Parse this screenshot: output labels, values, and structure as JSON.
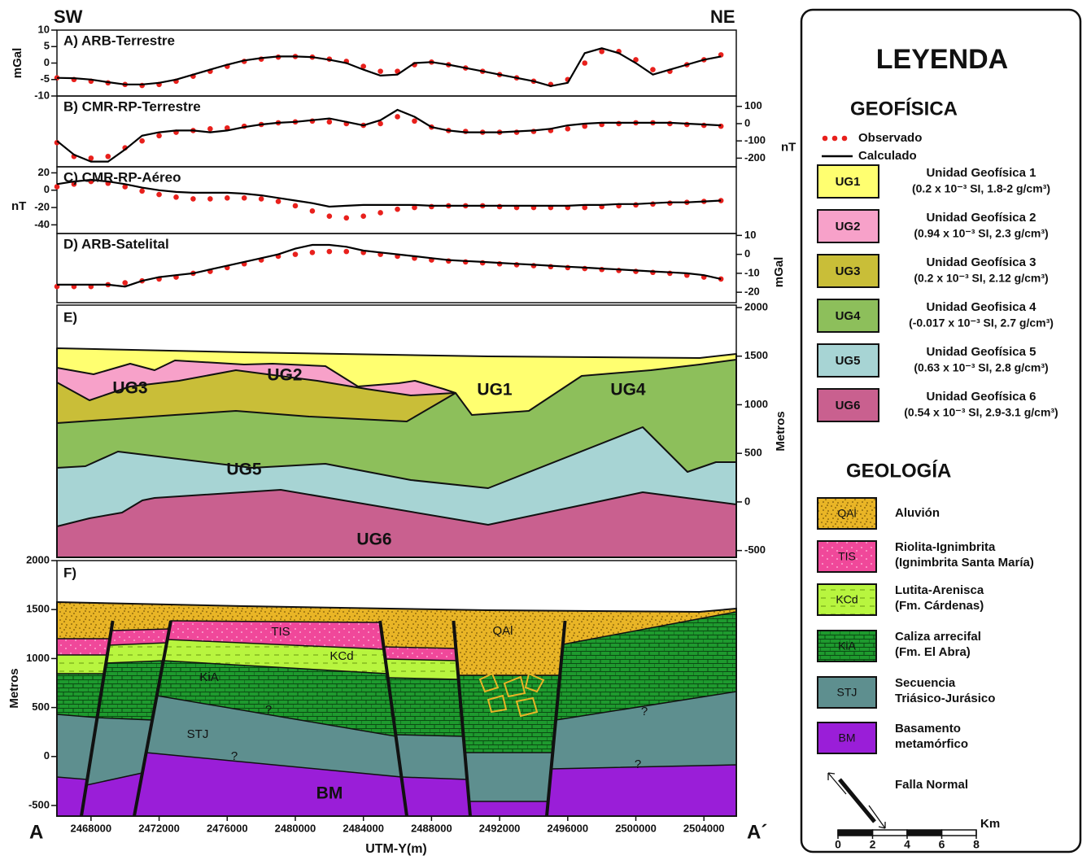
{
  "header": {
    "left": "SW",
    "right": "NE"
  },
  "chart_data": [
    {
      "type": "line",
      "title": "A) ARB-Terrestre",
      "ylabel": "mGal",
      "yaxis_side": "left",
      "xlim": [
        2466000,
        2505900
      ],
      "ylim": [
        -10,
        10
      ],
      "yticks": [
        -10,
        -5,
        0,
        5,
        10
      ],
      "x": [
        2466000,
        2467000,
        2468000,
        2469000,
        2470000,
        2471000,
        2472000,
        2473000,
        2474000,
        2475000,
        2476000,
        2477000,
        2478000,
        2479000,
        2480000,
        2481000,
        2482000,
        2483000,
        2484000,
        2485000,
        2486000,
        2487000,
        2488000,
        2489000,
        2490000,
        2491000,
        2492000,
        2493000,
        2494000,
        2495000,
        2496000,
        2497000,
        2498000,
        2499000,
        2500000,
        2501000,
        2502000,
        2503000,
        2504000,
        2505000
      ],
      "series": [
        {
          "name": "Observado",
          "marker": "dots",
          "color": "#e8201c",
          "values": [
            -4.5,
            -5,
            -5.5,
            -6,
            -6.5,
            -6.8,
            -6.5,
            -5.5,
            -4,
            -2.5,
            -1,
            0.5,
            1.2,
            1.8,
            2,
            1.8,
            1.2,
            0.5,
            -1,
            -2.5,
            -2.5,
            -0.5,
            0.3,
            -0.5,
            -1.5,
            -2.5,
            -3.5,
            -4.5,
            -5.5,
            -6.5,
            -5,
            0,
            3.5,
            3.5,
            1,
            -2,
            -2.5,
            -0.5,
            1,
            2.5
          ]
        },
        {
          "name": "Calculado",
          "marker": "line",
          "color": "#000000",
          "values": [
            -4.5,
            -4.6,
            -5,
            -5.8,
            -6.5,
            -6.5,
            -6,
            -5,
            -3.5,
            -2,
            -0.5,
            0.8,
            1.5,
            2,
            2,
            1.8,
            1,
            0,
            -2,
            -3.8,
            -3.5,
            0,
            0.3,
            -0.5,
            -1.5,
            -2.5,
            -3.5,
            -4.5,
            -5.5,
            -7,
            -6,
            3,
            4.5,
            3,
            0,
            -3.5,
            -2,
            -0.5,
            1,
            2
          ]
        }
      ]
    },
    {
      "type": "line",
      "title": "B) CMR-RP-Terrestre",
      "ylabel": "nT",
      "yaxis_side": "right",
      "xlim": [
        2466000,
        2505900
      ],
      "ylim": [
        -250,
        160
      ],
      "yticks": [
        -200,
        -100,
        0,
        100
      ],
      "x": [
        2466000,
        2467000,
        2468000,
        2469000,
        2470000,
        2471000,
        2472000,
        2473000,
        2474000,
        2475000,
        2476000,
        2477000,
        2478000,
        2479000,
        2480000,
        2481000,
        2482000,
        2483000,
        2484000,
        2485000,
        2486000,
        2487000,
        2488000,
        2489000,
        2490000,
        2491000,
        2492000,
        2493000,
        2494000,
        2495000,
        2496000,
        2497000,
        2498000,
        2499000,
        2500000,
        2501000,
        2502000,
        2503000,
        2504000,
        2505000
      ],
      "series": [
        {
          "marker": "dots",
          "color": "#e8201c",
          "values": [
            -110,
            -190,
            -200,
            -190,
            -140,
            -100,
            -70,
            -50,
            -40,
            -30,
            -25,
            -15,
            -5,
            5,
            10,
            15,
            10,
            0,
            -10,
            0,
            40,
            15,
            -20,
            -40,
            -45,
            -50,
            -50,
            -50,
            -45,
            -40,
            -30,
            -15,
            -5,
            0,
            5,
            5,
            0,
            -5,
            -10,
            -15
          ]
        },
        {
          "marker": "line",
          "color": "#000000",
          "values": [
            -100,
            -180,
            -220,
            -220,
            -150,
            -70,
            -50,
            -40,
            -40,
            -50,
            -40,
            -20,
            -5,
            5,
            10,
            20,
            30,
            10,
            -10,
            20,
            80,
            40,
            -20,
            -40,
            -50,
            -50,
            -50,
            -45,
            -40,
            -30,
            -10,
            0,
            5,
            5,
            5,
            5,
            5,
            0,
            -5,
            -10
          ]
        }
      ]
    },
    {
      "type": "line",
      "title": "C) CMR-RP-Aéreo",
      "ylabel": "nT",
      "yaxis_side": "left",
      "xlim": [
        2466000,
        2505900
      ],
      "ylim": [
        -50,
        27
      ],
      "yticks": [
        -40,
        -20,
        0,
        20
      ],
      "x": [
        2466000,
        2467000,
        2468000,
        2469000,
        2470000,
        2471000,
        2472000,
        2473000,
        2474000,
        2475000,
        2476000,
        2477000,
        2478000,
        2479000,
        2480000,
        2481000,
        2482000,
        2483000,
        2484000,
        2485000,
        2486000,
        2487000,
        2488000,
        2489000,
        2490000,
        2491000,
        2492000,
        2493000,
        2494000,
        2495000,
        2496000,
        2497000,
        2498000,
        2499000,
        2500000,
        2501000,
        2502000,
        2503000,
        2504000,
        2505000
      ],
      "series": [
        {
          "marker": "dots",
          "color": "#e8201c",
          "values": [
            4,
            7,
            10,
            8,
            4,
            -1,
            -5,
            -8,
            -10,
            -10,
            -9,
            -9,
            -10,
            -13,
            -18,
            -24,
            -30,
            -32,
            -30,
            -26,
            -22,
            -20,
            -19,
            -18,
            -18,
            -18,
            -19,
            -20,
            -20,
            -20,
            -20,
            -20,
            -19,
            -18,
            -17,
            -16,
            -15,
            -14,
            -13,
            -12
          ]
        },
        {
          "marker": "line",
          "color": "#000000",
          "values": [
            7,
            10,
            12,
            10,
            7,
            3,
            0,
            -2,
            -3,
            -3,
            -3,
            -4,
            -6,
            -9,
            -12,
            -15,
            -19,
            -18,
            -17,
            -17,
            -17,
            -17,
            -18,
            -18,
            -18,
            -18,
            -18,
            -18,
            -18,
            -18,
            -18,
            -17,
            -17,
            -16,
            -16,
            -15,
            -14,
            -14,
            -13,
            -12
          ]
        }
      ]
    },
    {
      "type": "line",
      "title": "D) ARB-Satelital",
      "ylabel": "mGal",
      "yaxis_side": "right",
      "xlim": [
        2466000,
        2505900
      ],
      "ylim": [
        -25.5,
        11
      ],
      "yticks": [
        -20,
        -10,
        0,
        10
      ],
      "x": [
        2466000,
        2467000,
        2468000,
        2469000,
        2470000,
        2471000,
        2472000,
        2473000,
        2474000,
        2475000,
        2476000,
        2477000,
        2478000,
        2479000,
        2480000,
        2481000,
        2482000,
        2483000,
        2484000,
        2485000,
        2486000,
        2487000,
        2488000,
        2489000,
        2490000,
        2491000,
        2492000,
        2493000,
        2494000,
        2495000,
        2496000,
        2497000,
        2498000,
        2499000,
        2500000,
        2501000,
        2502000,
        2503000,
        2504000,
        2505000
      ],
      "series": [
        {
          "marker": "dots",
          "color": "#e8201c",
          "values": [
            -17,
            -17,
            -17,
            -16,
            -15,
            -14,
            -13,
            -12,
            -10,
            -9,
            -7,
            -5,
            -3,
            -1,
            0,
            1,
            1.5,
            1.5,
            1,
            0,
            -1,
            -2,
            -3,
            -3.5,
            -4,
            -4.5,
            -5,
            -5.5,
            -6,
            -6.5,
            -7,
            -7.5,
            -8,
            -8.5,
            -9,
            -9.5,
            -10,
            -11,
            -12,
            -13
          ]
        },
        {
          "marker": "line",
          "color": "#000000",
          "values": [
            -16,
            -16,
            -16,
            -16,
            -17,
            -14,
            -12,
            -11,
            -10,
            -8,
            -6,
            -4,
            -2,
            0,
            3,
            5,
            5,
            4,
            2,
            1,
            0,
            -1,
            -2,
            -3,
            -3.5,
            -4,
            -4.5,
            -5,
            -5.5,
            -6,
            -6.5,
            -7,
            -7.5,
            -8,
            -8.5,
            -9,
            -9.5,
            -10,
            -11,
            -13
          ]
        }
      ]
    },
    {
      "type": "section",
      "title": "E)",
      "ylabel": "Metros",
      "yaxis_side": "right",
      "ylim": [
        -570,
        2025
      ],
      "yticks": [
        -500,
        0,
        500,
        1000,
        1500,
        2000
      ],
      "labels": [
        "UG1",
        "UG2",
        "UG3",
        "UG4",
        "UG5",
        "UG6"
      ]
    },
    {
      "type": "section",
      "title": "F)",
      "ylabel": "Metros",
      "xlabel": "UTM-Y(m)",
      "yaxis_side": "left",
      "xlim": [
        2466000,
        2505900
      ],
      "xticks": [
        2468000,
        2472000,
        2476000,
        2480000,
        2484000,
        2488000,
        2492000,
        2496000,
        2500000,
        2504000
      ],
      "ylim": [
        -608,
        2000
      ],
      "yticks": [
        -500,
        0,
        500,
        1000,
        1500,
        2000
      ],
      "labels": [
        "TIS",
        "KCd",
        "QAl",
        "KiA",
        "STJ",
        "?",
        "?",
        "?",
        "?",
        "BM"
      ],
      "start_label": "A",
      "end_label": "A´"
    }
  ],
  "legend": {
    "title": "LEYENDA",
    "geophysics": {
      "title": "GEOFÍSICA",
      "units": [
        {
          "code": "UG1",
          "name": "Unidad Geofísica 1",
          "props": "(0.2 x 10⁻³ SI, 1.8-2 g/cm³)",
          "color": "#ffff70"
        },
        {
          "code": "UG2",
          "name": "Unidad Geofísica 2",
          "props": "(0.94 x 10⁻³ SI, 2.3 g/cm³)",
          "color": "#f7a1c9"
        },
        {
          "code": "UG3",
          "name": "Unidad Geofísica 3",
          "props": "(0.2 x 10⁻³ SI, 2.12 g/cm³)",
          "color": "#c9be38"
        },
        {
          "code": "UG4",
          "name": "Unidad Geofisica 4",
          "props": "(-0.017 x 10⁻³ SI, 2.7 g/cm³)",
          "color": "#8dbf5b"
        },
        {
          "code": "UG5",
          "name": "Unidad Geofísica 5",
          "props": "(0.63 x 10⁻³ SI, 2.8 g/cm³)",
          "color": "#a7d4d4"
        },
        {
          "code": "UG6",
          "name": "Unidad Geofísica 6",
          "props": "(0.54 x 10⁻³ SI, 2.9-3.1 g/cm³)",
          "color": "#c9608f"
        }
      ]
    },
    "geology": {
      "title": "GEOLOGÍA",
      "units": [
        {
          "code": "QAl",
          "name": "Aluvión",
          "color": "#e9b526"
        },
        {
          "code": "TIS",
          "name": "Riolita-Ignimbrita",
          "detail": "(Ignimbrita Santa María)",
          "color": "#f0489a"
        },
        {
          "code": "KCd",
          "name": "Lutita-Arenisca",
          "detail": "(Fm. Cárdenas)",
          "color": "#b8f53f"
        },
        {
          "code": "KiA",
          "name": "Caliza arrecifal",
          "detail": "(Fm. El Abra)",
          "color": "#1e9a2e"
        },
        {
          "code": "STJ",
          "name": "Secuencia",
          "detail": "Triásico-Jurásico",
          "color": "#5e8f8f"
        },
        {
          "code": "BM",
          "name": "Basamento",
          "detail": "metamórfico",
          "color": "#9a1ed8"
        }
      ],
      "fault": "Falla Normal"
    },
    "scale": {
      "unit": "Km",
      "ticks": [
        0,
        2,
        4,
        6,
        8
      ]
    }
  }
}
